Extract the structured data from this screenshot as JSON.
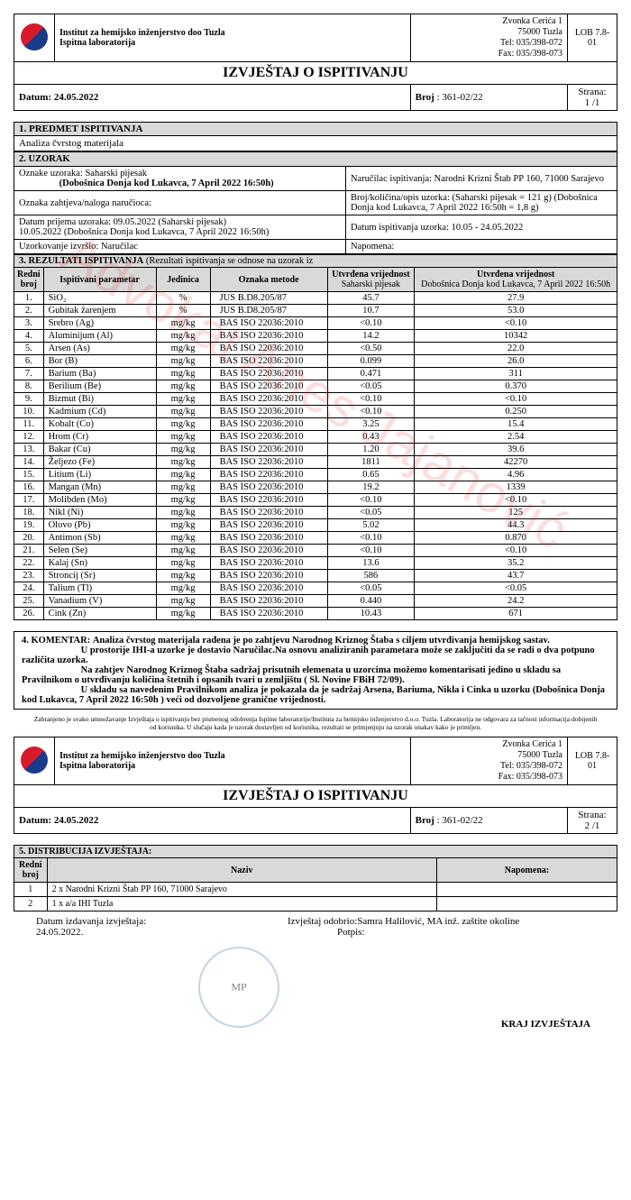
{
  "header": {
    "institute_line1": "Institut za hemijsko inženjerstvo doo Tuzla",
    "institute_line2": "Ispitna laboratorija",
    "addr1": "Zvonka Cerića 1",
    "addr2": "75000 Tuzla",
    "tel": "Tel:  035/398-072",
    "fax": "Fax: 035/398-073",
    "lob": "LOB 7.8-01",
    "title": "IZVJEŠTAJ O ISPITIVANJU",
    "date_label": "Datum:",
    "date": "24.05.2022",
    "broj_label": "Broj",
    "broj": ": 361-02/22",
    "page_label": "Strana:",
    "page1": "1 /1",
    "page2": "2 /1"
  },
  "s1": {
    "hdr": "1. PREDMET ISPITIVANJA",
    "text": "Analiza čvrstog materijala"
  },
  "s2": {
    "hdr": "2. UZORAK",
    "oznake_label": "Oznake uzoraka:  Saharski pijesak",
    "oznake_sub": "(Dobošnica Donja kod Lukavca, 7 April 2022 16:50h)",
    "narucilac": "Naručilac ispitivanja:  Narodni Krizni Štab    PP 160, 71000 Sarajevo",
    "zahtjev": "Oznaka zahtjeva/naloga naručioca:",
    "kolicina": "Broj/količina/opis uzorka: (Saharski pijesak = 121 g)  (Dobošnica Donja kod Lukavca, 7 April 2022 16:50h = 1,8 g)",
    "prijem1": "Datum prijema uzoraka: 09.05.2022 (Saharski pijesak)",
    "prijem2": "10.05.2022 (Dobošnica Donja kod Lukavca, 7 April 2022 16:50h)",
    "datum_isp": "Datum ispitivanja uzorka: 10.05 - 24.05.2022",
    "uzork": "Uzorkovanje izvršio: Naručilac",
    "napomena": "Napomena:"
  },
  "s3": {
    "hdr": "3. REZULTATI ISPITIVANJA",
    "hdr_sub": "(Rezultati ispitivanja se odnose na uzorak iz",
    "col1": "Redni broj",
    "col2": "Ispitivani parametar",
    "col3": "Jedinica",
    "col4": "Oznaka metode",
    "col5_1": "Utvrđena vrijednost",
    "col5_2": "Saharski pijesak",
    "col6_1": "Utvrđena vrijednost",
    "col6_2": "Dobošnica Donja kod Lukavca, 7 April 2022 16:50h"
  },
  "rows": [
    {
      "n": "1.",
      "p": "SiO₂",
      "u": "%",
      "m": "JUS B.D8.205/87",
      "v1": "45.7",
      "v2": "27.9"
    },
    {
      "n": "2.",
      "p": "Gubitak žarenjem",
      "u": "%",
      "m": "JUS B.D8.205/87",
      "v1": "10.7",
      "v2": "53.0"
    },
    {
      "n": "3.",
      "p": "Srebro (Ag)",
      "u": "mg/kg",
      "m": "BAS ISO 22036:2010",
      "v1": "<0.10",
      "v2": "<0.10"
    },
    {
      "n": "4.",
      "p": "Aluminijum (Al)",
      "u": "mg/kg",
      "m": "BAS ISO 22036:2010",
      "v1": "14.2",
      "v2": "10342"
    },
    {
      "n": "5.",
      "p": "Arsen (As)",
      "u": "mg/kg",
      "m": "BAS ISO 22036:2010",
      "v1": "<0.50",
      "v2": "22.0"
    },
    {
      "n": "6.",
      "p": "Bor (B)",
      "u": "mg/kg",
      "m": "BAS ISO 22036:2010",
      "v1": "0.099",
      "v2": "26.0"
    },
    {
      "n": "7.",
      "p": "Barium (Ba)",
      "u": "mg/kg",
      "m": "BAS ISO 22036:2010",
      "v1": "0.471",
      "v2": "311"
    },
    {
      "n": "8.",
      "p": "Berilium (Be)",
      "u": "mg/kg",
      "m": "BAS ISO 22036:2010",
      "v1": "<0.05",
      "v2": "0.370"
    },
    {
      "n": "9.",
      "p": "Bizmut (Bi)",
      "u": "mg/kg",
      "m": "BAS ISO 22036:2010",
      "v1": "<0.10",
      "v2": "<0.10"
    },
    {
      "n": "10.",
      "p": "Kadmium (Cd)",
      "u": "mg/kg",
      "m": "BAS ISO 22036:2010",
      "v1": "<0.10",
      "v2": "0.250"
    },
    {
      "n": "11.",
      "p": "Kobalt (Co)",
      "u": "mg/kg",
      "m": "BAS ISO 22036:2010",
      "v1": "3.25",
      "v2": "15.4"
    },
    {
      "n": "12.",
      "p": "Hrom (Cr)",
      "u": "mg/kg",
      "m": "BAS ISO 22036:2010",
      "v1": "0.43",
      "v2": "2.54"
    },
    {
      "n": "13.",
      "p": "Bakar (Cu)",
      "u": "mg/kg",
      "m": "BAS ISO 22036:2010",
      "v1": "1.20",
      "v2": "39.6"
    },
    {
      "n": "14.",
      "p": "Željezo (Fe)",
      "u": "mg/kg",
      "m": "BAS ISO 22036:2010",
      "v1": "1811",
      "v2": "42270"
    },
    {
      "n": "15.",
      "p": "Litium (Li)",
      "u": "mg/kg",
      "m": "BAS ISO 22036:2010",
      "v1": "0.65",
      "v2": "4.96"
    },
    {
      "n": "16.",
      "p": "Mangan (Mn)",
      "u": "mg/kg",
      "m": "BAS ISO 22036:2010",
      "v1": "19.2",
      "v2": "1339"
    },
    {
      "n": "17.",
      "p": "Molibden (Mo)",
      "u": "mg/kg",
      "m": "BAS ISO 22036:2010",
      "v1": "<0.10",
      "v2": "<0.10"
    },
    {
      "n": "18.",
      "p": "Nikl (Ni)",
      "u": "mg/kg",
      "m": "BAS ISO 22036:2010",
      "v1": "<0.05",
      "v2": "125"
    },
    {
      "n": "19.",
      "p": "Olovo (Pb)",
      "u": "mg/kg",
      "m": "BAS ISO 22036:2010",
      "v1": "5.02",
      "v2": "44.3"
    },
    {
      "n": "20.",
      "p": "Antimon (Sb)",
      "u": "mg/kg",
      "m": "BAS ISO 22036:2010",
      "v1": "<0.10",
      "v2": "0.870"
    },
    {
      "n": "21.",
      "p": "Selen (Se)",
      "u": "mg/kg",
      "m": "BAS ISO 22036:2010",
      "v1": "<0.10",
      "v2": "<0.10"
    },
    {
      "n": "22.",
      "p": "Kalaj (Sn)",
      "u": "mg/kg",
      "m": "BAS ISO 22036:2010",
      "v1": "13.6",
      "v2": "35.2"
    },
    {
      "n": "23.",
      "p": "Stroncij (Sr)",
      "u": "mg/kg",
      "m": "BAS ISO 22036:2010",
      "v1": "586",
      "v2": "43.7"
    },
    {
      "n": "24.",
      "p": "Talium (Tl)",
      "u": "mg/kg",
      "m": "BAS ISO 22036:2010",
      "v1": "<0.05",
      "v2": "<0.05"
    },
    {
      "n": "25.",
      "p": "Vanadium (V)",
      "u": "mg/kg",
      "m": "BAS ISO 22036:2010",
      "v1": "0.440",
      "v2": "24.2"
    },
    {
      "n": "26.",
      "p": "Cink (Zn)",
      "u": "mg/kg",
      "m": "BAS ISO 22036:2010",
      "v1": "10.43",
      "v2": "671"
    }
  ],
  "s4": {
    "label": "4. KOMENTAR:",
    "l1": "Analiza čvrstog materijala rađena je po zahtjevu Narodnog Kriznog Štaba s ciljem utvrđivanja hemijskog sastav.",
    "l2": "U prostorije IHI-a uzorke je dostavio Naručilac.Na osnovu analiziranih parametara može se zaključiti da se radi o dva potpuno različita uzorka.",
    "l3": "Na zahtjev Narodnog Kriznog Štaba sadržaj prisutnih elemenata u uzorcima možemo komentarisati jedino u skladu sa Pravilnikom o utvrđivanju količina štetnih i opsanih tvari  u zemljištu ( Sl. Novine FBiH 72/09).",
    "l4": "U skladu sa navedenim Pravilnikom analiza je pokazala da je sadržaj Arsena, Bariuma, Nikla i Cinka u  uzorku (Dobošnica Donja kod Lukavca, 7 April 2022 16:50h ) veći od  dozvoljene granične vrijednosti."
  },
  "disclaimer": "Zabranjeno je svako umnožavanje Izvještaja o ispitivanju bez pismenog odobrenja Ispitne laboratorije/Instituta za hemijsko inženjerstvo d.o.o. Tuzla. Laboratorija ne odgovara za tačnost informacija dobijenih od korisnika. U slučaju kada je uzorak dostavljen od korisnika, rezultati se primjenjuju na uzorak onakav kako je primljen.",
  "s5": {
    "hdr": "5. DISTRIBUCIJA IZVJEŠTAJA:",
    "col1": "Redni broj",
    "col2": "Naziv",
    "col3": "Napomena:",
    "r1n": "1",
    "r1t": "2 x Narodni Krizni Štab     PP 160, 71000 Sarajevo",
    "r2n": "2",
    "r2t": "1 x a/a IHI Tuzla"
  },
  "sig": {
    "issue_label": "Datum izdavanja izvještaja:",
    "issue_date": "24.05.2022.",
    "approved": "Izvještaj odobrio:Samra Halilović, MA  inž. zaštite okoline",
    "potpis": "Potpis:",
    "end": "KRAJ IZVJEŠTAJA"
  },
  "watermark": "Advokat Anes Jajanović"
}
